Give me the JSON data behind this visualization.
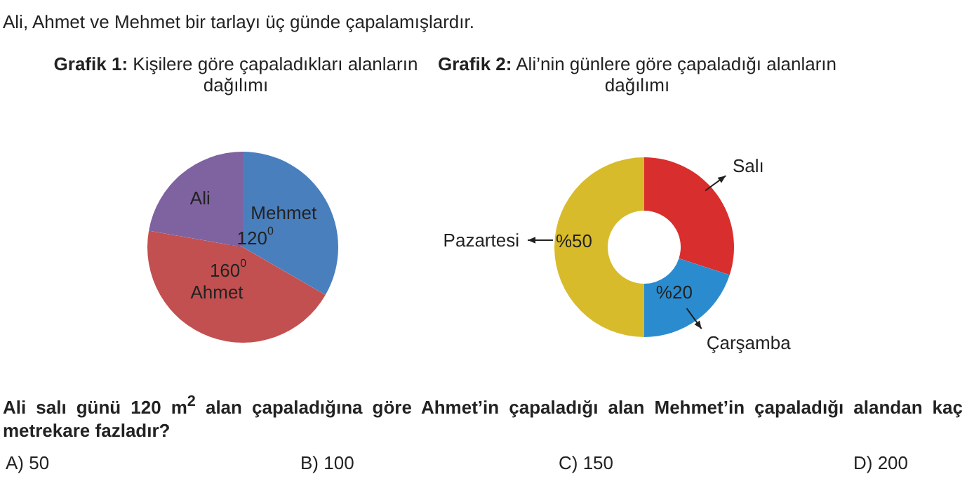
{
  "chart_data": [
    {
      "type": "pie",
      "title": "Grafik 1: Kişilere göre çapaladıkları alanların dağılımı",
      "categories": [
        "Mehmet",
        "Ahmet",
        "Ali"
      ],
      "values": [
        120,
        160,
        80
      ],
      "colors": [
        "#4a7fbe",
        "#c25050",
        "#7f62a0"
      ],
      "value_labels": [
        "120$^{0}$",
        "160$^{0}$",
        null
      ],
      "annotations": [
        "Ali, Ahmet ve Mehmet bir tarlayı üç günde çapalamışlardır.",
        "Ali salı günü 120 m$^{2}$ alan çapaladığına göre Ahmet’in çapaladığı alan Mehmet’in çapaladığı alandan kaç metrekare fazladır?",
        "A) 50",
        "B) 100",
        "C) 150",
        "D) 200"
      ]
    },
    {
      "type": "donut",
      "title": "Grafik 2: Ali’nin günlere göre çapaladığı alanların dağılımı",
      "categories": [
        "Salı",
        "Çarşamba",
        "Pazartesi"
      ],
      "values": [
        30,
        20,
        50
      ],
      "colors": [
        "#d92e2e",
        "#2a8ccf",
        "#d8bb2a"
      ],
      "value_labels": [
        null,
        "%20",
        "%50"
      ]
    }
  ]
}
